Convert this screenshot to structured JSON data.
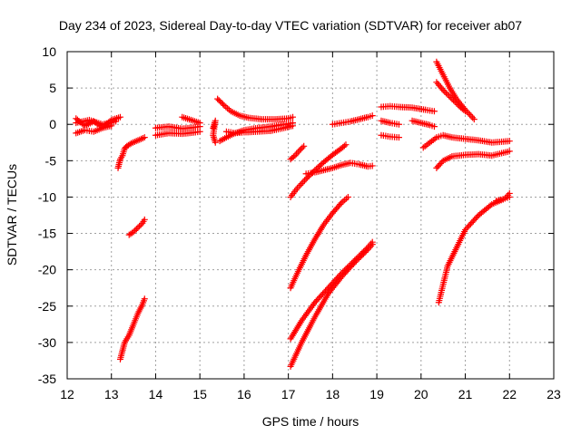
{
  "chart_data": {
    "type": "scatter",
    "title": "Day 234 of 2023, Sidereal Day-to-day VTEC variation (SDTVAR) for receiver ab07",
    "xlabel": "GPS time / hours",
    "ylabel": "SDTVAR / TECUs",
    "xlim": [
      12,
      23
    ],
    "ylim": [
      -35,
      10
    ],
    "xticks": [
      12,
      13,
      14,
      15,
      16,
      17,
      18,
      19,
      20,
      21,
      22,
      23
    ],
    "yticks": [
      -35,
      -30,
      -25,
      -20,
      -15,
      -10,
      -5,
      0,
      5,
      10
    ],
    "grid": true,
    "marker": "+",
    "color": "#ff0000",
    "series": [
      {
        "name": "s1",
        "x": [
          12.2,
          12.4,
          12.6,
          12.8,
          13.0,
          13.2
        ],
        "y": [
          0.8,
          -0.2,
          0.4,
          -0.4,
          0.6,
          1.0
        ]
      },
      {
        "name": "s2",
        "x": [
          12.2,
          12.4,
          12.6,
          12.8,
          13.0
        ],
        "y": [
          -1.2,
          -0.8,
          -1.0,
          -0.5,
          -0.2
        ]
      },
      {
        "name": "s3",
        "x": [
          12.2,
          12.5,
          12.8,
          13.1
        ],
        "y": [
          0.2,
          0.6,
          0.0,
          0.4
        ]
      },
      {
        "name": "s4",
        "x": [
          13.15,
          13.2,
          13.25,
          13.3,
          13.35,
          13.45,
          13.6,
          13.75
        ],
        "y": [
          -6.0,
          -4.8,
          -4.3,
          -3.3,
          -3.0,
          -2.6,
          -2.2,
          -1.8
        ]
      },
      {
        "name": "s5",
        "x": [
          13.4,
          13.5,
          13.6,
          13.7,
          13.75
        ],
        "y": [
          -15.2,
          -14.8,
          -14.2,
          -13.6,
          -13.1
        ]
      },
      {
        "name": "s6",
        "x": [
          13.2,
          13.3,
          13.4,
          13.5,
          13.6,
          13.7,
          13.75
        ],
        "y": [
          -32.3,
          -30.0,
          -29.0,
          -27.5,
          -26.0,
          -24.8,
          -24.0
        ]
      },
      {
        "name": "s7",
        "x": [
          14.0,
          14.3,
          14.6,
          14.9,
          15.0
        ],
        "y": [
          -0.5,
          -0.3,
          -0.6,
          -0.4,
          -0.3
        ]
      },
      {
        "name": "s8",
        "x": [
          14.0,
          14.3,
          14.6,
          14.9,
          15.0
        ],
        "y": [
          -1.5,
          -1.2,
          -1.3,
          -1.1,
          -1.0
        ]
      },
      {
        "name": "s9",
        "x": [
          14.6,
          14.8,
          15.0
        ],
        "y": [
          1.0,
          0.6,
          0.2
        ]
      },
      {
        "name": "s10",
        "x": [
          15.3,
          15.35,
          15.3,
          15.35
        ],
        "y": [
          -0.5,
          0.5,
          -1.5,
          -2.5
        ]
      },
      {
        "name": "s11",
        "x": [
          15.4,
          15.55,
          15.7,
          15.9,
          16.1,
          16.4,
          16.7,
          17.0,
          17.1
        ],
        "y": [
          3.5,
          2.6,
          1.8,
          1.2,
          0.9,
          0.7,
          0.7,
          0.8,
          1.0
        ]
      },
      {
        "name": "s12",
        "x": [
          15.45,
          15.6,
          15.8,
          16.0,
          16.3,
          16.6,
          16.9,
          17.1
        ],
        "y": [
          -2.3,
          -1.8,
          -1.2,
          -0.8,
          -0.5,
          -0.3,
          0.0,
          0.2
        ]
      },
      {
        "name": "s13",
        "x": [
          15.6,
          15.8,
          16.0,
          16.3,
          16.6,
          16.9,
          17.1
        ],
        "y": [
          -1.0,
          -1.2,
          -1.1,
          -1.0,
          -0.9,
          -0.5,
          -0.2
        ]
      },
      {
        "name": "s14",
        "x": [
          17.05,
          17.15,
          17.25,
          17.35
        ],
        "y": [
          -4.8,
          -4.3,
          -3.6,
          -3.0
        ]
      },
      {
        "name": "s15",
        "x": [
          17.05,
          17.2,
          17.4,
          17.6,
          17.8,
          18.0,
          18.2,
          18.3
        ],
        "y": [
          -10.0,
          -8.8,
          -7.5,
          -6.3,
          -5.2,
          -4.2,
          -3.3,
          -2.8
        ]
      },
      {
        "name": "s16",
        "x": [
          17.4,
          17.6,
          17.8,
          18.0,
          18.2,
          18.4,
          18.6,
          18.8,
          18.9
        ],
        "y": [
          -6.8,
          -6.6,
          -6.3,
          -6.0,
          -5.6,
          -5.3,
          -5.5,
          -5.8,
          -5.7
        ]
      },
      {
        "name": "s17",
        "x": [
          18.0,
          18.2,
          18.4,
          18.6,
          18.8,
          18.9
        ],
        "y": [
          0.0,
          0.2,
          0.4,
          0.7,
          1.0,
          1.2
        ]
      },
      {
        "name": "s18",
        "x": [
          17.05,
          17.2,
          17.4,
          17.6,
          17.8,
          18.0,
          18.2,
          18.35
        ],
        "y": [
          -22.5,
          -20.5,
          -18.0,
          -15.8,
          -13.8,
          -12.2,
          -10.8,
          -10.0
        ]
      },
      {
        "name": "s19",
        "x": [
          17.05,
          17.3,
          17.6,
          17.9,
          18.2,
          18.5,
          18.8,
          18.9
        ],
        "y": [
          -29.5,
          -27.0,
          -24.5,
          -22.5,
          -20.5,
          -18.7,
          -16.9,
          -16.2
        ]
      },
      {
        "name": "s20",
        "x": [
          17.05,
          17.3,
          17.6,
          17.9,
          18.2,
          18.5,
          18.8,
          18.9
        ],
        "y": [
          -33.3,
          -30.0,
          -26.5,
          -23.3,
          -21.0,
          -19.0,
          -17.2,
          -16.5
        ]
      },
      {
        "name": "s21",
        "x": [
          19.1,
          19.3,
          19.5,
          19.8,
          20.1,
          20.3
        ],
        "y": [
          2.4,
          2.5,
          2.4,
          2.3,
          2.0,
          1.8
        ]
      },
      {
        "name": "s22",
        "x": [
          19.1,
          19.3,
          19.5
        ],
        "y": [
          0.5,
          0.2,
          0.0
        ]
      },
      {
        "name": "s23",
        "x": [
          19.8,
          20.0,
          20.2,
          20.3
        ],
        "y": [
          0.5,
          0.2,
          -0.1,
          -0.3
        ]
      },
      {
        "name": "s24",
        "x": [
          19.1,
          19.3,
          19.5
        ],
        "y": [
          -1.5,
          -1.7,
          -1.8
        ]
      },
      {
        "name": "s25",
        "x": [
          20.05,
          20.2,
          20.35,
          20.5,
          20.7,
          21.0,
          21.3,
          21.6,
          22.0
        ],
        "y": [
          -3.2,
          -2.5,
          -1.8,
          -1.5,
          -1.8,
          -2.0,
          -2.2,
          -2.5,
          -2.3
        ]
      },
      {
        "name": "s26",
        "x": [
          20.35,
          20.5,
          20.7,
          21.0,
          21.3,
          21.6,
          22.0
        ],
        "y": [
          -6.0,
          -5.0,
          -4.4,
          -4.2,
          -4.1,
          -4.3,
          -3.7
        ]
      },
      {
        "name": "s27",
        "x": [
          20.35,
          20.5,
          20.65,
          20.8,
          21.0,
          21.2
        ],
        "y": [
          8.6,
          6.8,
          5.0,
          3.5,
          2.0,
          0.7
        ]
      },
      {
        "name": "s28",
        "x": [
          20.35,
          20.5,
          20.7,
          20.9,
          21.0
        ],
        "y": [
          5.8,
          4.7,
          3.5,
          2.3,
          1.8
        ]
      },
      {
        "name": "s29",
        "x": [
          20.4,
          20.5,
          20.6,
          20.8,
          21.0,
          21.3,
          21.6,
          21.9,
          22.0
        ],
        "y": [
          -24.5,
          -22.0,
          -19.5,
          -17.0,
          -14.5,
          -12.5,
          -11.0,
          -10.2,
          -9.5
        ]
      },
      {
        "name": "s30",
        "x": [
          21.7,
          21.85,
          22.0
        ],
        "y": [
          -10.5,
          -10.3,
          -10.0
        ]
      }
    ]
  }
}
